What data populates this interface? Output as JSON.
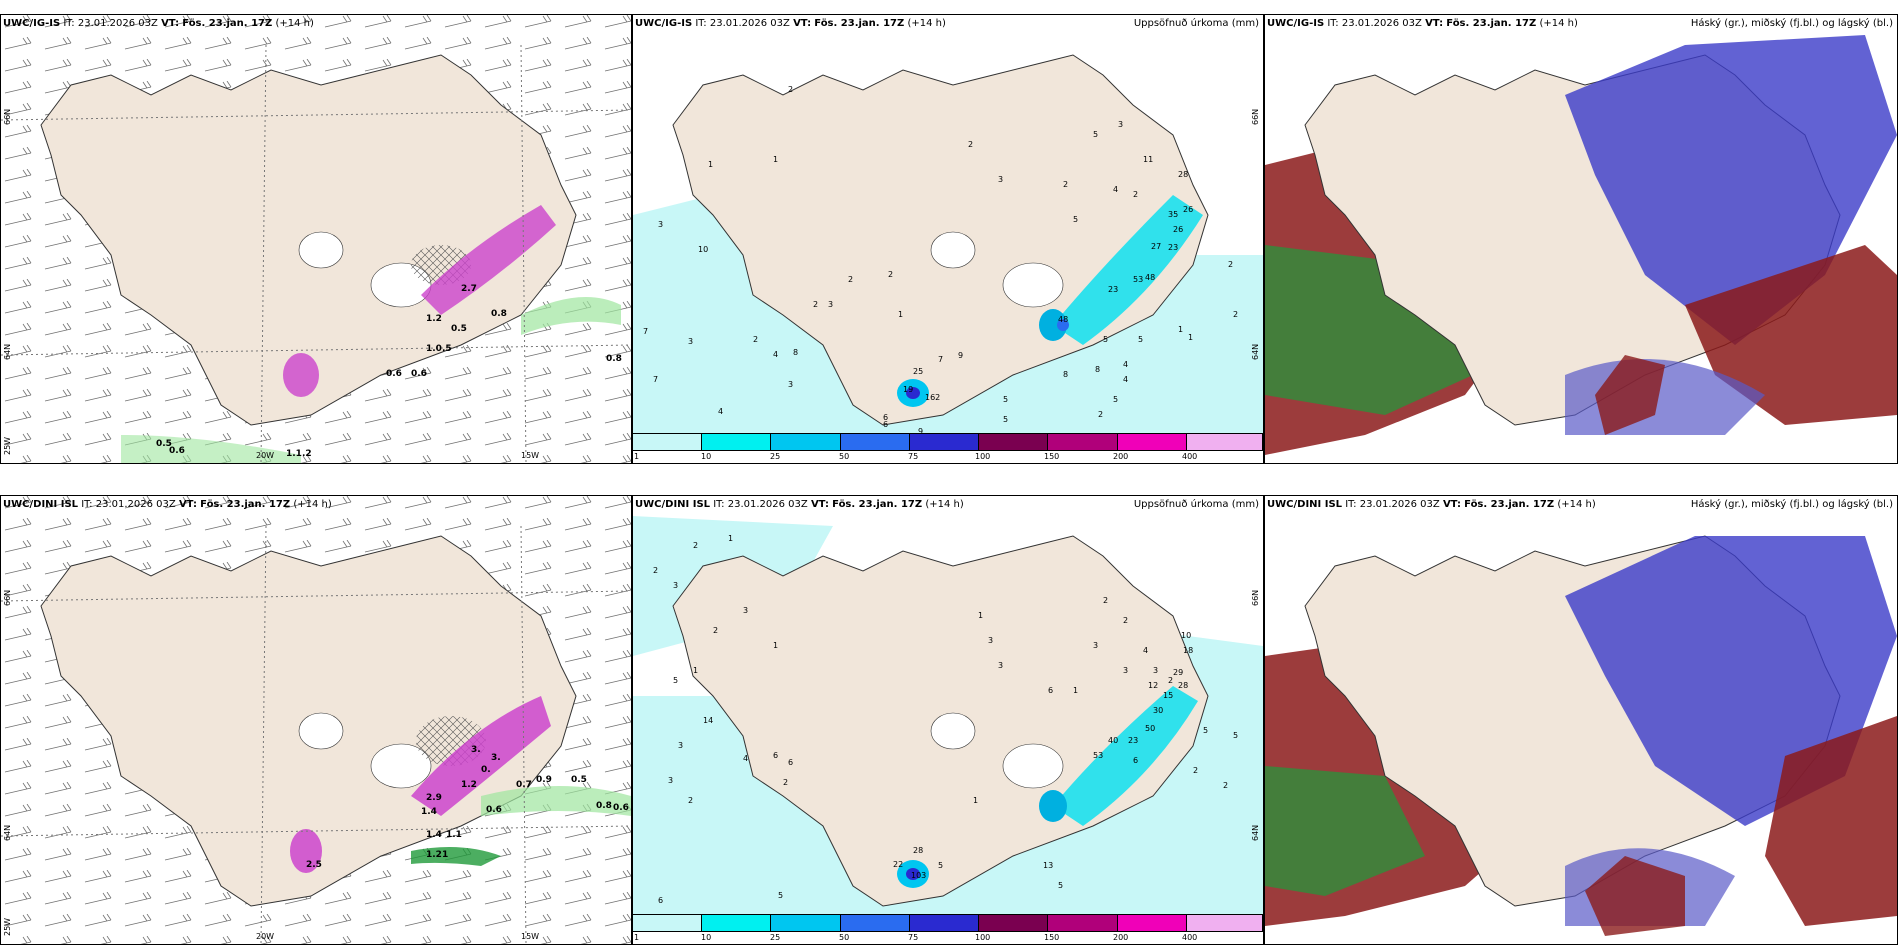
{
  "panels": [
    {
      "id": "r1c1",
      "model": "UWC/IG-IS",
      "it_label": "IT:",
      "it_value": "23.01.2026 03Z",
      "vt_label": "VT:",
      "vt_value": "Fös. 23.jan. 17Z",
      "lead": "(+14 h)",
      "right_title": "",
      "lat_labels": [
        "66N",
        "64N",
        "25W"
      ],
      "lon_labels": [
        "20W",
        "15W"
      ],
      "values": [
        "2.7",
        "1.2",
        "0.5",
        "0.8",
        "1.0.5",
        "0.6",
        "0.6",
        "0.8",
        "0.5",
        "0.6",
        "1.1.2"
      ]
    },
    {
      "id": "r1c2",
      "model": "UWC/IG-IS",
      "it_label": "IT:",
      "it_value": "23.01.2026 03Z",
      "vt_label": "VT:",
      "vt_value": "Fös. 23.jan. 17Z",
      "lead": "(+14 h)",
      "right_title": "Uppsöfnuð úrkoma (mm)",
      "lat_labels": [
        "66N",
        "64N"
      ],
      "values": [
        "2",
        "1",
        "1",
        "3",
        "10",
        "7",
        "3",
        "7",
        "4",
        "2",
        "4",
        "8",
        "3",
        "2",
        "3",
        "1",
        "2",
        "2",
        "2",
        "3",
        "5",
        "2",
        "5",
        "3",
        "11",
        "2",
        "4",
        "28",
        "26",
        "35",
        "26",
        "27",
        "23",
        "48",
        "23",
        "53",
        "48",
        "5",
        "8",
        "4",
        "5",
        "1",
        "1",
        "2",
        "2",
        "25",
        "7",
        "9",
        "19",
        "162",
        "5",
        "5",
        "6",
        "9",
        "5",
        "4",
        "2",
        "8",
        "6"
      ],
      "legend": [
        "1",
        "10",
        "25",
        "50",
        "75",
        "100",
        "150",
        "200",
        "400"
      ]
    },
    {
      "id": "r1c3",
      "model": "UWC/IG-IS",
      "it_label": "IT:",
      "it_value": "23.01.2026 03Z",
      "vt_label": "VT:",
      "vt_value": "Fös. 23.jan. 17Z",
      "lead": "(+14 h)",
      "right_title": "Háský (gr.), miðský (fj.bl.) og lágský (bl.)"
    },
    {
      "id": "r2c1",
      "model": "UWC/DINI ISL",
      "it_label": "IT:",
      "it_value": "23.01.2026 03Z",
      "vt_label": "VT:",
      "vt_value": "Fös. 23.jan. 17Z",
      "lead": "(+14 h)",
      "right_title": "",
      "lat_labels": [
        "66N",
        "64N",
        "25W"
      ],
      "lon_labels": [
        "20W",
        "15W"
      ],
      "values": [
        "3.",
        "3.",
        "0.",
        "2.9",
        "1.2",
        "1.4",
        "0.7",
        "0.9",
        "0.5",
        "0.6",
        "0.8",
        "0.6",
        "1.4",
        "1.1",
        "1.21",
        "2.5"
      ]
    },
    {
      "id": "r2c2",
      "model": "UWC/DINI ISL",
      "it_label": "IT:",
      "it_value": "23.01.2026 03Z",
      "vt_label": "VT:",
      "vt_value": "Fös. 23.jan. 17Z",
      "lead": "(+14 h)",
      "right_title": "Uppsöfnuð úrkoma (mm)",
      "lat_labels": [
        "66N",
        "64N"
      ],
      "values": [
        "2",
        "1",
        "2",
        "3",
        "3",
        "2",
        "1",
        "5",
        "1",
        "14",
        "3",
        "2",
        "1",
        "3",
        "3",
        "2",
        "2",
        "3",
        "4",
        "3",
        "3",
        "6",
        "1",
        "2",
        "10",
        "18",
        "29",
        "28",
        "15",
        "12",
        "30",
        "50",
        "23",
        "40",
        "53",
        "6",
        "5",
        "5",
        "2",
        "2",
        "3",
        "4",
        "6",
        "6",
        "2",
        "1",
        "28",
        "5",
        "22",
        "103",
        "13",
        "5",
        "6",
        "5"
      ],
      "legend": [
        "1",
        "10",
        "25",
        "50",
        "75",
        "100",
        "150",
        "200",
        "400"
      ]
    },
    {
      "id": "r2c3",
      "model": "UWC/DINI ISL",
      "it_label": "IT:",
      "it_value": "23.01.2026 03Z",
      "vt_label": "VT:",
      "vt_value": "Fös. 23.jan. 17Z",
      "lead": "(+14 h)",
      "right_title": "Háský (gr.), miðský (fj.bl.) og lágský (bl.)"
    }
  ],
  "colors": {
    "land": "#f1e6da",
    "precip_legend": [
      "#c8f7f7",
      "#00f0f0",
      "#00c6f0",
      "#2a6cf0",
      "#2a2ad0",
      "#7a0050",
      "#b0007a",
      "#f000b8",
      "#f0b0f0"
    ],
    "cloud_high": "#1f9a3a",
    "cloud_mid": "#8b1a1a",
    "cloud_low": "#3b3bc8"
  }
}
